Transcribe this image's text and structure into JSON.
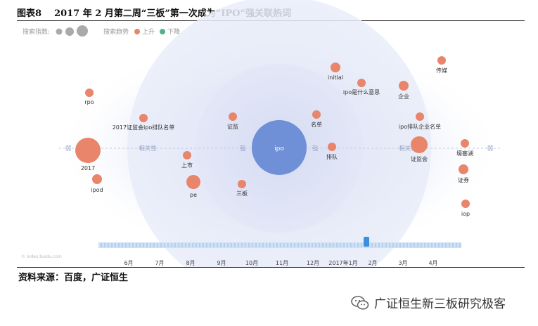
{
  "figure": {
    "number": "图表8",
    "title": "2017 年 2 月第二周“三板”第一次成为“IPO”强关联热词",
    "source": "资料来源：百度，广证恒生",
    "watermark": "广证恒生新三板研究极客"
  },
  "legend": {
    "size_label": "搜索指数:",
    "trend_label": "搜索趋势",
    "up_label": "上升",
    "down_label": "下降",
    "up_color": "#e8856a",
    "down_color": "#4fb38a"
  },
  "chart_data": {
    "type": "scatter",
    "center": "ipo",
    "ring_labels": [
      "弱",
      "相关性",
      "强",
      "强",
      "相关性",
      "弱"
    ],
    "bubbles": [
      {
        "label": "ipo",
        "trend": "center"
      },
      {
        "label": "rpo",
        "trend": "up"
      },
      {
        "label": "2017证监会ipo排队名单",
        "trend": "up"
      },
      {
        "label": "2017",
        "trend": "up"
      },
      {
        "label": "ipod",
        "trend": "up"
      },
      {
        "label": "上市",
        "trend": "up"
      },
      {
        "label": "pe",
        "trend": "up"
      },
      {
        "label": "证监",
        "trend": "up"
      },
      {
        "label": "三板",
        "trend": "up"
      },
      {
        "label": "initial",
        "trend": "up"
      },
      {
        "label": "ipo是什么意思",
        "trend": "up"
      },
      {
        "label": "名单",
        "trend": "up"
      },
      {
        "label": "排队",
        "trend": "up"
      },
      {
        "label": "企业",
        "trend": "up"
      },
      {
        "label": "ipo排队企业名单",
        "trend": "up"
      },
      {
        "label": "证监会",
        "trend": "up"
      },
      {
        "label": "传媒",
        "trend": "up"
      },
      {
        "label": "壕塞湖",
        "trend": "up"
      },
      {
        "label": "证券",
        "trend": "up"
      },
      {
        "label": "iop",
        "trend": "up"
      }
    ],
    "timeline": {
      "ticks": [
        "6月",
        "7月",
        "8月",
        "9月",
        "10月",
        "11月",
        "12月",
        "2017年1月",
        "2月",
        "3月",
        "4月"
      ],
      "selected": "2月"
    },
    "colors": {
      "center": "#6f8fd6",
      "up": "#e8856a"
    }
  }
}
